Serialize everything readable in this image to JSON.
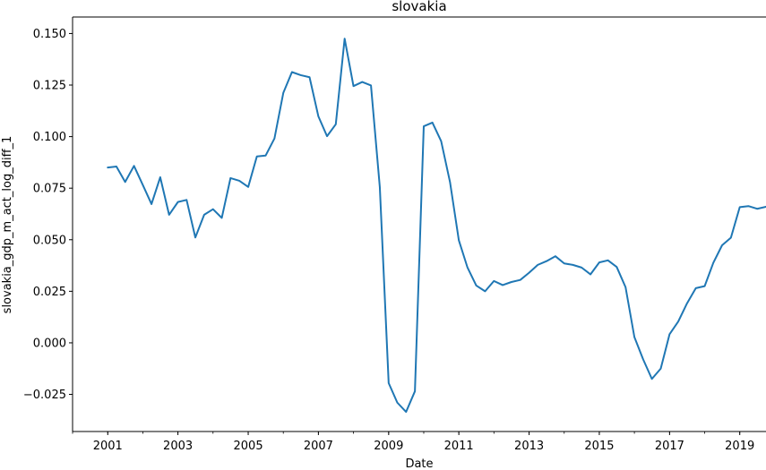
{
  "chart_data": {
    "type": "line",
    "title": "slovakia",
    "xlabel": "Date",
    "ylabel": "slovakia_gdp_m_act_log_diff_1",
    "xlim": [
      "2000-01-01",
      "2019-10-01"
    ],
    "ylim": [
      -0.043,
      0.158
    ],
    "x_ticks": [
      "2001",
      "2003",
      "2005",
      "2007",
      "2009",
      "2011",
      "2013",
      "2015",
      "2017",
      "2019"
    ],
    "y_ticks": [
      {
        "value": 0.15,
        "label": "0.150"
      },
      {
        "value": 0.125,
        "label": "0.125"
      },
      {
        "value": 0.1,
        "label": "0.100"
      },
      {
        "value": 0.075,
        "label": "0.075"
      },
      {
        "value": 0.05,
        "label": "0.050"
      },
      {
        "value": 0.025,
        "label": "0.025"
      },
      {
        "value": 0.0,
        "label": "0.000"
      },
      {
        "value": -0.025,
        "label": "−0.025"
      }
    ],
    "grid": false,
    "series": [
      {
        "color": "#1f77b4",
        "x": [
          "2001-01-01",
          "2001-04-01",
          "2001-07-01",
          "2001-10-01",
          "2002-01-01",
          "2002-04-01",
          "2002-07-01",
          "2002-10-01",
          "2003-01-01",
          "2003-04-01",
          "2003-07-01",
          "2003-10-01",
          "2004-01-01",
          "2004-04-01",
          "2004-07-01",
          "2004-10-01",
          "2005-01-01",
          "2005-04-01",
          "2005-07-01",
          "2005-10-01",
          "2006-01-01",
          "2006-04-01",
          "2006-07-01",
          "2006-10-01",
          "2007-01-01",
          "2007-04-01",
          "2007-07-01",
          "2007-10-01",
          "2008-01-01",
          "2008-04-01",
          "2008-07-01",
          "2008-10-01",
          "2009-01-01",
          "2009-04-01",
          "2009-07-01",
          "2009-10-01",
          "2010-01-01",
          "2010-04-01",
          "2010-07-01",
          "2010-10-01",
          "2011-01-01",
          "2011-04-01",
          "2011-07-01",
          "2011-10-01",
          "2012-01-01",
          "2012-04-01",
          "2012-07-01",
          "2012-10-01",
          "2013-01-01",
          "2013-04-01",
          "2013-07-01",
          "2013-10-01",
          "2014-01-01",
          "2014-04-01",
          "2014-07-01",
          "2014-10-01",
          "2015-01-01",
          "2015-04-01",
          "2015-07-01",
          "2015-10-01",
          "2016-01-01",
          "2016-04-01",
          "2016-07-01",
          "2016-10-01",
          "2017-01-01",
          "2017-04-01",
          "2017-07-01",
          "2017-10-01",
          "2018-01-01",
          "2018-04-01",
          "2018-07-01",
          "2018-10-01",
          "2019-01-01",
          "2019-04-01",
          "2019-07-01",
          "2019-10-01"
        ],
        "values": [
          0.085,
          0.0855,
          0.078,
          0.0858,
          0.0765,
          0.0673,
          0.0803,
          0.0621,
          0.0683,
          0.0693,
          0.0511,
          0.0621,
          0.0648,
          0.0606,
          0.0799,
          0.0786,
          0.0756,
          0.0904,
          0.0908,
          0.0991,
          0.1212,
          0.1313,
          0.1298,
          0.1288,
          0.1098,
          0.1002,
          0.106,
          0.1475,
          0.1245,
          0.1265,
          0.1248,
          0.0755,
          -0.0195,
          -0.029,
          -0.0335,
          -0.0235,
          0.105,
          0.1068,
          0.0978,
          0.078,
          0.0497,
          0.0365,
          0.0278,
          0.025,
          0.03,
          0.028,
          0.0295,
          0.0305,
          0.034,
          0.0378,
          0.0396,
          0.042,
          0.0385,
          0.0378,
          0.0365,
          0.0332,
          0.039,
          0.04,
          0.0368,
          0.027,
          0.0028,
          -0.008,
          -0.0175,
          -0.0125,
          0.0042,
          0.0103,
          0.0191,
          0.0265,
          0.0275,
          0.0388,
          0.0473,
          0.051,
          0.0658,
          0.0663,
          0.065,
          0.066
        ]
      }
    ]
  }
}
